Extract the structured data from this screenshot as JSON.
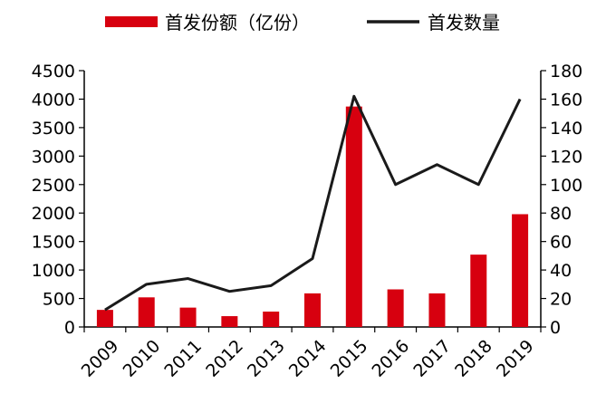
{
  "chart_data": {
    "type": "bar+line",
    "categories": [
      "2009",
      "2010",
      "2011",
      "2012",
      "2013",
      "2014",
      "2015",
      "2016",
      "2017",
      "2018",
      "2019"
    ],
    "series": [
      {
        "name": "首发份额（亿份）",
        "type": "bar",
        "axis": "left",
        "color": "#d7000f",
        "values": [
          300,
          520,
          340,
          190,
          270,
          590,
          3870,
          660,
          590,
          1270,
          1980
        ]
      },
      {
        "name": "首发数量",
        "type": "line",
        "axis": "right",
        "color": "#1a1a1a",
        "values": [
          12,
          30,
          34,
          25,
          29,
          48,
          162,
          100,
          114,
          100,
          160
        ]
      }
    ],
    "y_left": {
      "min": 0,
      "max": 4500,
      "step": 500,
      "ticks": [
        "0",
        "500",
        "1000",
        "1500",
        "2000",
        "2500",
        "3000",
        "3500",
        "4000",
        "4500"
      ]
    },
    "y_right": {
      "min": 0,
      "max": 180,
      "step": 20,
      "ticks": [
        "0",
        "20",
        "40",
        "60",
        "80",
        "100",
        "120",
        "140",
        "160",
        "180"
      ]
    },
    "legend_position": "top",
    "grid": false
  }
}
